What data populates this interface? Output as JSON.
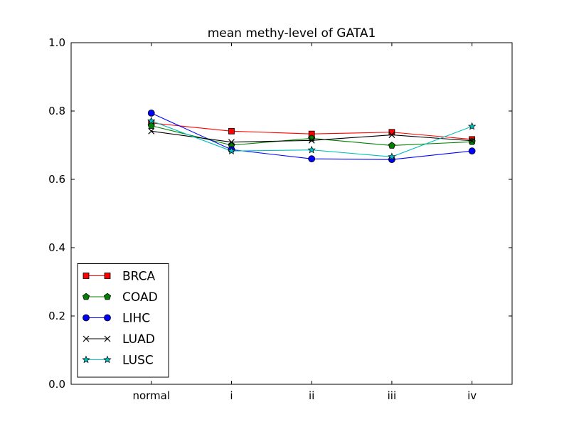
{
  "chart_data": {
    "type": "line",
    "title": "mean methy-level of GATA1",
    "xlabel": "",
    "ylabel": "",
    "categories": [
      "normal",
      "i",
      "ii",
      "iii",
      "iv"
    ],
    "xlim": [
      -1,
      4.5
    ],
    "ylim": [
      0.0,
      1.0
    ],
    "yticks": [
      "0.0",
      "0.2",
      "0.4",
      "0.6",
      "0.8",
      "1.0"
    ],
    "ytick_values": [
      0.0,
      0.2,
      0.4,
      0.6,
      0.8,
      1.0
    ],
    "grid": false,
    "legend_position": "lower-left",
    "series": [
      {
        "name": "BRCA",
        "color": "#ff0000",
        "marker": "square",
        "values": [
          0.765,
          0.741,
          0.733,
          0.738,
          0.717
        ]
      },
      {
        "name": "COAD",
        "color": "#008000",
        "marker": "pentagon",
        "values": [
          0.757,
          0.7,
          0.72,
          0.699,
          0.71
        ]
      },
      {
        "name": "LIHC",
        "color": "#0000ff",
        "marker": "circle",
        "values": [
          0.794,
          0.687,
          0.66,
          0.658,
          0.683
        ]
      },
      {
        "name": "LUAD",
        "color": "#000000",
        "marker": "x",
        "values": [
          0.741,
          0.709,
          0.714,
          0.73,
          0.713
        ]
      },
      {
        "name": "LUSC",
        "color": "#00bfbf",
        "marker": "star",
        "values": [
          0.771,
          0.683,
          0.686,
          0.666,
          0.755
        ]
      }
    ]
  }
}
